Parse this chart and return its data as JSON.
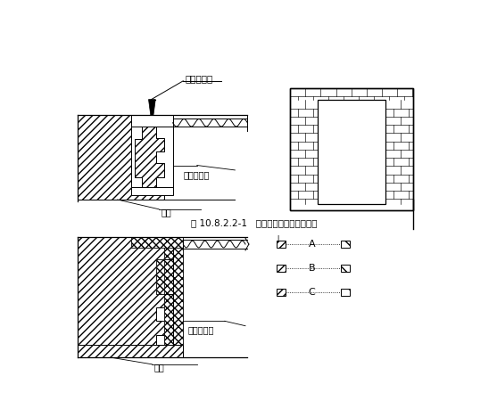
{
  "title_text": "图 10.8.2.2-1   钢木质防火门结构安装图",
  "label_dading": "打钉拉铁皮",
  "label_gangfang": "钢防火门框",
  "label_qianti_top": "墙体",
  "label_fangmu": "防火木门框",
  "label_qianti_bot": "墙体",
  "label_A": "A",
  "label_B": "B",
  "label_C": "C",
  "bg_color": "#ffffff"
}
